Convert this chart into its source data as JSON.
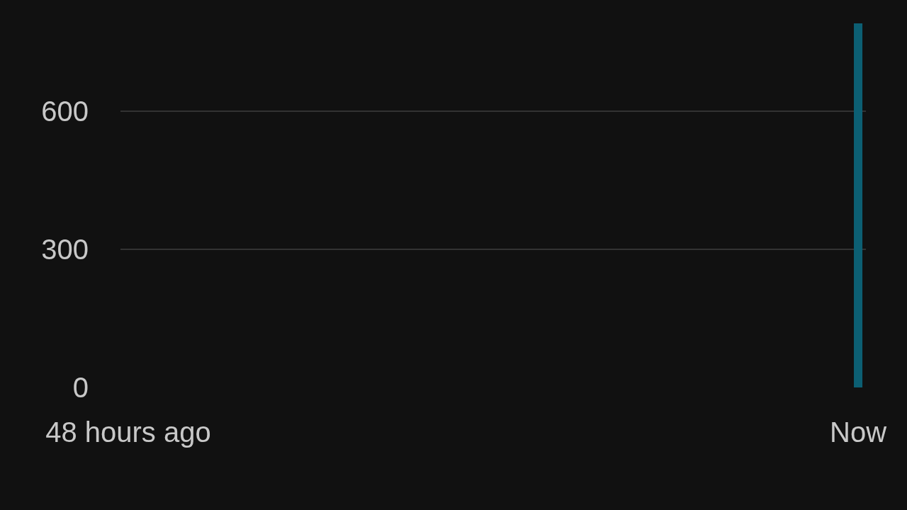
{
  "chart_data": {
    "type": "bar",
    "categories": [
      "48 hours ago",
      null,
      null,
      null,
      null,
      null,
      null,
      null,
      null,
      null,
      null,
      null,
      null,
      null,
      null,
      null,
      null,
      null,
      null,
      null,
      null,
      null,
      null,
      null,
      null,
      null,
      null,
      null,
      null,
      null,
      null,
      null,
      null,
      null,
      null,
      null,
      null,
      null,
      null,
      null,
      null,
      null,
      null,
      null,
      null,
      null,
      null,
      "Now"
    ],
    "values": [
      0,
      0,
      0,
      0,
      0,
      0,
      0,
      0,
      0,
      0,
      0,
      0,
      0,
      0,
      0,
      0,
      0,
      0,
      0,
      0,
      0,
      0,
      0,
      0,
      0,
      0,
      0,
      0,
      0,
      0,
      0,
      0,
      0,
      0,
      0,
      0,
      0,
      0,
      0,
      0,
      0,
      0,
      0,
      0,
      0,
      0,
      0,
      790
    ],
    "color": "#0c5f73",
    "ylim": [
      0,
      790
    ],
    "yticks": [
      0,
      300,
      600
    ],
    "grid": "y"
  }
}
